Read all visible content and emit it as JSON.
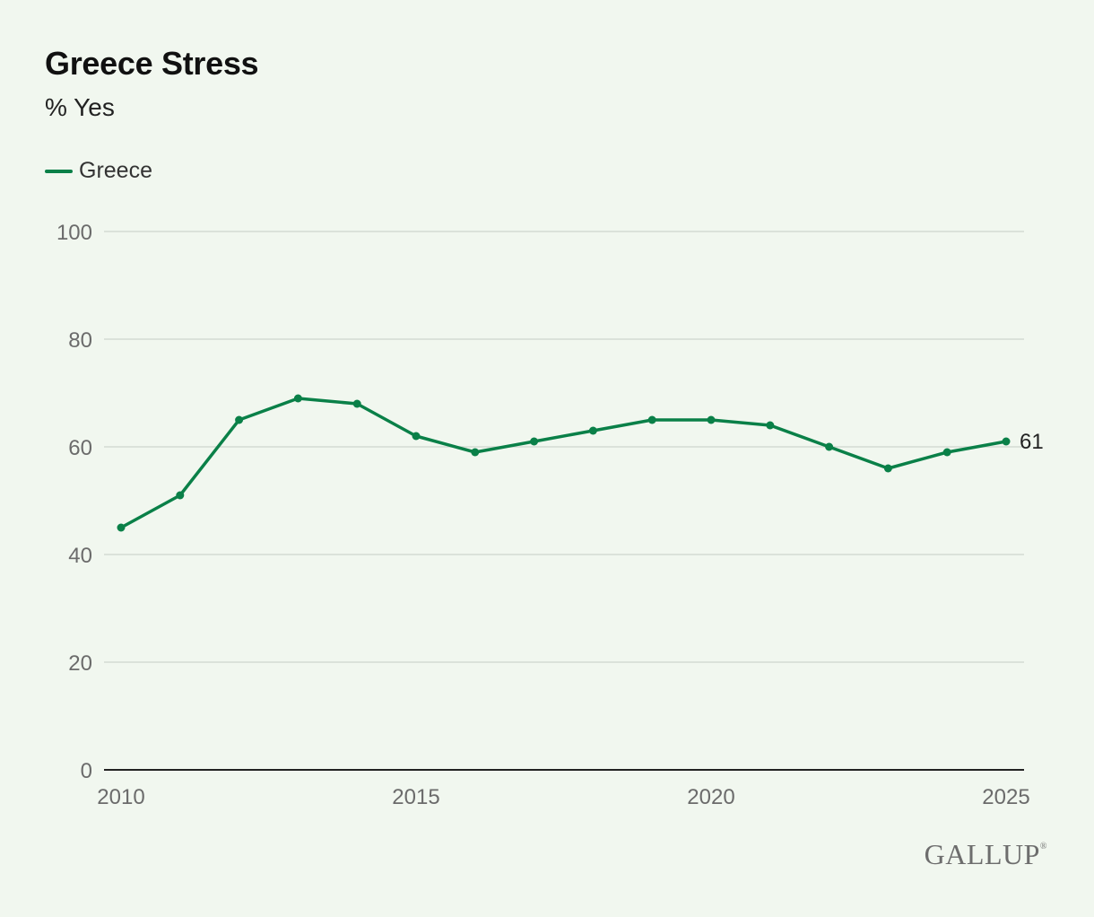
{
  "title": "Greece Stress",
  "subtitle": "% Yes",
  "legend": {
    "label": "Greece"
  },
  "colors": {
    "series": "#0a8048",
    "grid": "#d4dbd3",
    "axis": "#222222",
    "tick": "#6b6b6b"
  },
  "logo": {
    "text": "GALLUP",
    "mark": "®"
  },
  "chart_data": {
    "type": "line",
    "title": "Greece Stress",
    "subtitle": "% Yes",
    "xlabel": "",
    "ylabel": "",
    "x": [
      2010,
      2011,
      2012,
      2013,
      2014,
      2015,
      2016,
      2017,
      2018,
      2019,
      2020,
      2021,
      2022,
      2023,
      2024,
      2025
    ],
    "series": [
      {
        "name": "Greece",
        "values": [
          45,
          51,
          65,
          69,
          68,
          62,
          59,
          61,
          63,
          65,
          65,
          64,
          60,
          56,
          59,
          61
        ]
      }
    ],
    "ylim": [
      0,
      100
    ],
    "xlim": [
      2010,
      2025
    ],
    "yticks": [
      0,
      20,
      40,
      60,
      80,
      100
    ],
    "xticks": [
      2010,
      2015,
      2020,
      2025
    ],
    "end_label": "61",
    "grid": true,
    "legend_position": "top-left"
  }
}
